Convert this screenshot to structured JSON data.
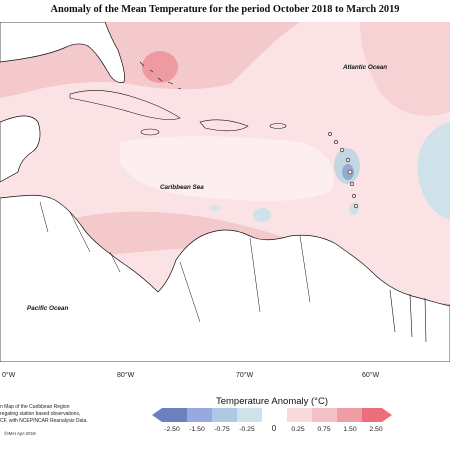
{
  "title": "Anomaly of the Mean Temperature for the period October 2018 to March 2019",
  "map_labels": {
    "atlantic": "Atlantic Ocean",
    "caribbean": "Caribbean Sea",
    "pacific": "Pacific Ocean"
  },
  "longitude_labels": [
    "0°W",
    "80°W",
    "70°W",
    "60°W"
  ],
  "credit_lines": [
    "n Map of the Caribbean Region",
    "regating station based observations,",
    "CF, with NCEP/NCAR Reanalysis Data."
  ],
  "copyright": "©IMH Apr-2019",
  "legend": {
    "title": "Temperature Anomaly (°C)",
    "ticks": [
      "-2.50",
      "-1.50",
      "-0.75",
      "-0.25",
      "0",
      "0.25",
      "0.75",
      "1.50",
      "2.50"
    ],
    "colors": [
      "#6c7fbf",
      "#98a9e0",
      "#aec8e6",
      "#cfe2ea",
      "#ffffff",
      "#f9d9dc",
      "#f3c0c5",
      "#ef9ca4",
      "#ec6e7a"
    ]
  },
  "colors": {
    "land": "#ffffff",
    "coast": "#111111",
    "warm_light": "#fbe1e3",
    "warm_mid": "#f4c4c8",
    "warm_strong": "#ee9aa1",
    "cool_light": "#d4e5ec",
    "cool_mid": "#bcd5e0"
  }
}
